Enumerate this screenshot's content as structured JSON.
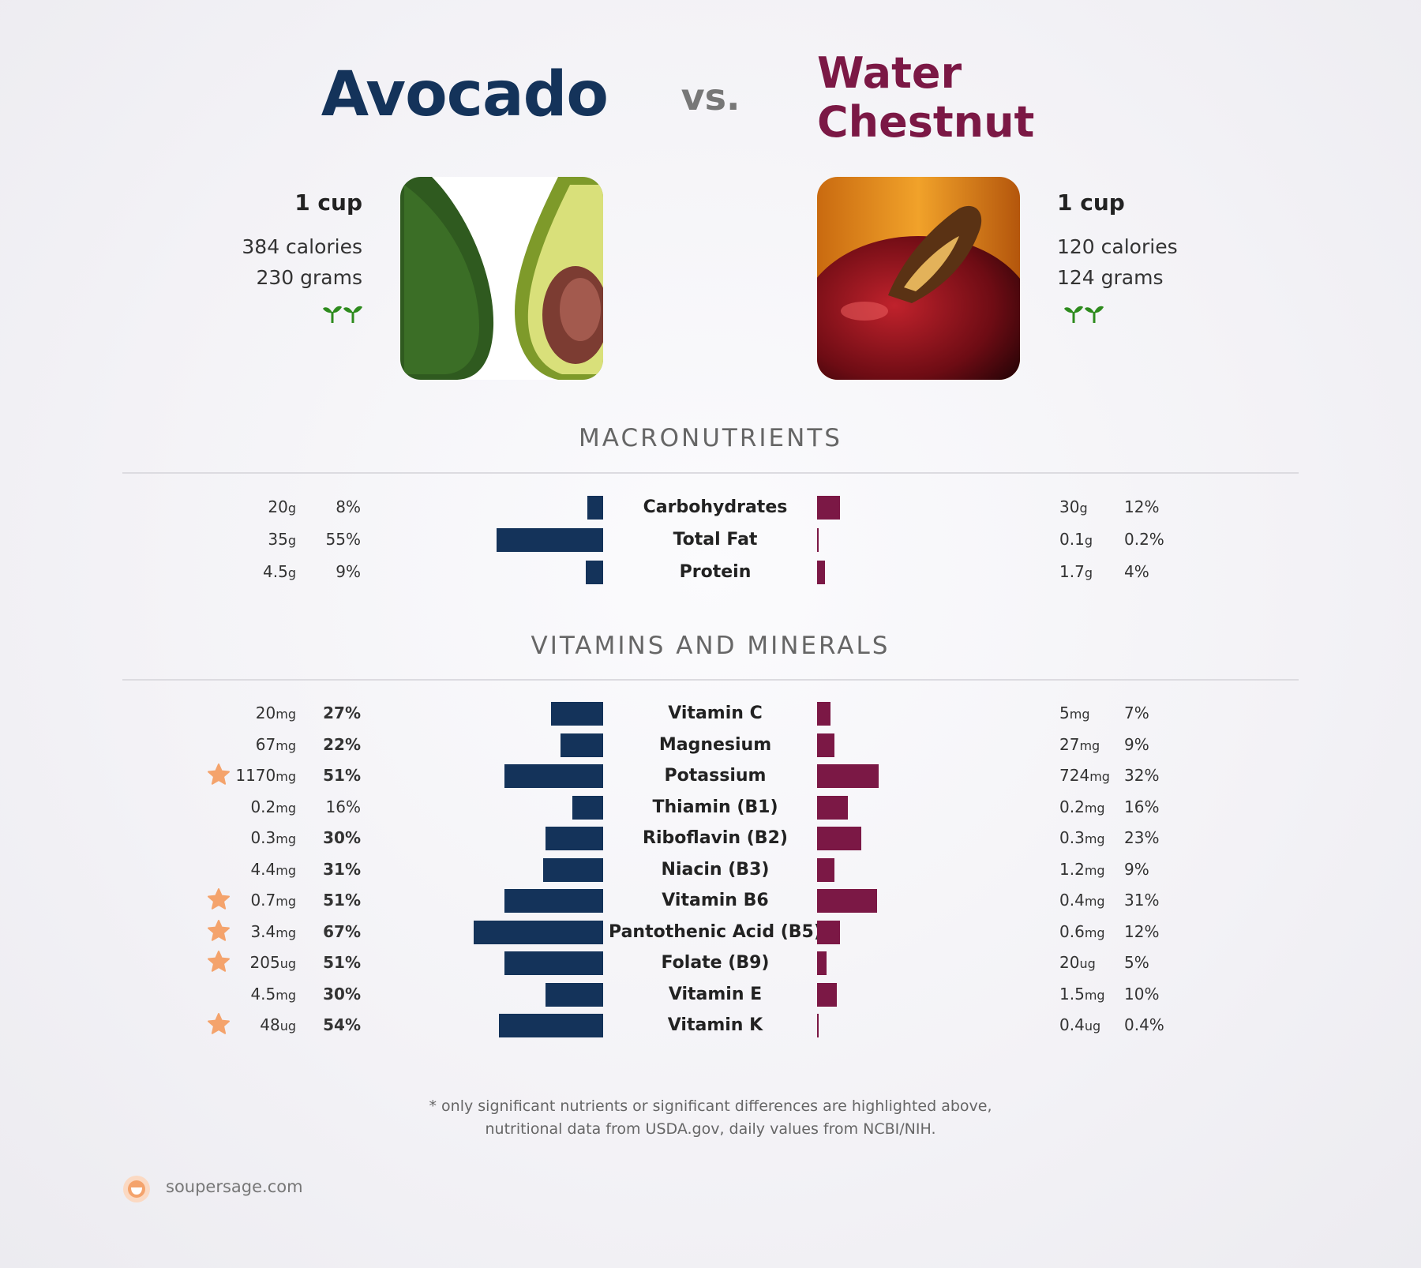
{
  "header": {
    "left_title": "Avocado",
    "vs": "vs.",
    "right_title_line1": "Water",
    "right_title_line2": "Chestnut"
  },
  "left_food": {
    "serving": "1 cup",
    "calories": "384 calories",
    "grams": "230 grams",
    "badge_icon": "sprout-icon"
  },
  "right_food": {
    "serving": "1 cup",
    "calories": "120 calories",
    "grams": "124 grams",
    "badge_icon": "sprout-icon"
  },
  "sections": {
    "macros": "MACRONUTRIENTS",
    "vitamins": "VITAMINS AND MINERALS"
  },
  "colors": {
    "left": "#14335a",
    "right": "#7b1845",
    "star": "#f4a36c"
  },
  "chart_data": [
    {
      "type": "bar",
      "title": "MACRONUTRIENTS",
      "categories": [
        "Carbohydrates",
        "Total Fat",
        "Protein"
      ],
      "series": [
        {
          "name": "Avocado",
          "values": [
            8,
            55,
            9
          ],
          "amounts": [
            "20",
            "35",
            "4.5"
          ],
          "units": [
            "g",
            "g",
            "g"
          ],
          "pct_labels": [
            "8%",
            "55%",
            "9%"
          ],
          "bold": [
            false,
            false,
            false
          ],
          "stars": [
            false,
            false,
            false
          ]
        },
        {
          "name": "Water Chestnut",
          "values": [
            12,
            0.2,
            4
          ],
          "amounts": [
            "30",
            "0.1",
            "1.7"
          ],
          "units": [
            "g",
            "g",
            "g"
          ],
          "pct_labels": [
            "12%",
            "0.2%",
            "4%"
          ]
        }
      ]
    },
    {
      "type": "bar",
      "title": "VITAMINS AND MINERALS",
      "categories": [
        "Vitamin C",
        "Magnesium",
        "Potassium",
        "Thiamin (B1)",
        "Riboflavin (B2)",
        "Niacin (B3)",
        "Vitamin B6",
        "Pantothenic Acid (B5)",
        "Folate (B9)",
        "Vitamin E",
        "Vitamin K"
      ],
      "series": [
        {
          "name": "Avocado",
          "values": [
            27,
            22,
            51,
            16,
            30,
            31,
            51,
            67,
            51,
            30,
            54
          ],
          "amounts": [
            "20",
            "67",
            "1170",
            "0.2",
            "0.3",
            "4.4",
            "0.7",
            "3.4",
            "205",
            "4.5",
            "48"
          ],
          "units": [
            "mg",
            "mg",
            "mg",
            "mg",
            "mg",
            "mg",
            "mg",
            "mg",
            "ug",
            "mg",
            "ug"
          ],
          "pct_labels": [
            "27%",
            "22%",
            "51%",
            "16%",
            "30%",
            "31%",
            "51%",
            "67%",
            "51%",
            "30%",
            "54%"
          ],
          "bold": [
            true,
            true,
            true,
            false,
            true,
            true,
            true,
            true,
            true,
            true,
            true
          ],
          "stars": [
            false,
            false,
            true,
            false,
            false,
            false,
            true,
            true,
            true,
            false,
            true
          ]
        },
        {
          "name": "Water Chestnut",
          "values": [
            7,
            9,
            32,
            16,
            23,
            9,
            31,
            12,
            5,
            10,
            0.4
          ],
          "amounts": [
            "5",
            "27",
            "724",
            "0.2",
            "0.3",
            "1.2",
            "0.4",
            "0.6",
            "20",
            "1.5",
            "0.4"
          ],
          "units": [
            "mg",
            "mg",
            "mg",
            "mg",
            "mg",
            "mg",
            "mg",
            "mg",
            "ug",
            "mg",
            "ug"
          ],
          "pct_labels": [
            "7%",
            "9%",
            "32%",
            "16%",
            "23%",
            "9%",
            "31%",
            "12%",
            "5%",
            "10%",
            "0.4%"
          ]
        }
      ]
    }
  ],
  "footer": {
    "line1": "* only significant nutrients or significant differences are highlighted above,",
    "line2": "nutritional data from USDA.gov, daily values from NCBI/NIH.",
    "brand": "soupersage.com"
  }
}
